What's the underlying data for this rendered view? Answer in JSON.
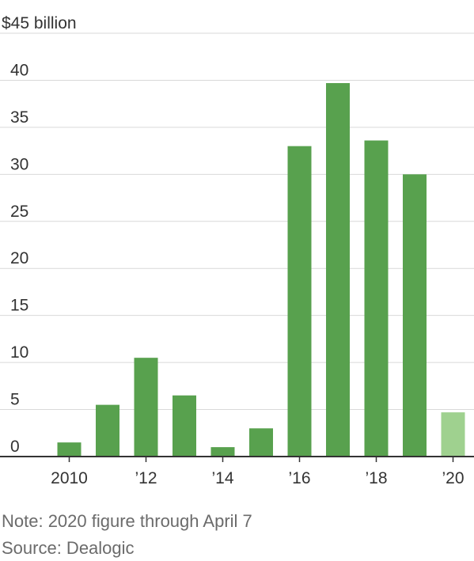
{
  "chart_data": {
    "type": "bar",
    "categories": [
      "2010",
      "2011",
      "2012",
      "2013",
      "2014",
      "2015",
      "2016",
      "2017",
      "2018",
      "2019",
      "2020"
    ],
    "x_tick_labels": [
      "2010",
      "",
      "’12",
      "",
      "’14",
      "",
      "’16",
      "",
      "’18",
      "",
      "’20"
    ],
    "values": [
      1.5,
      5.5,
      10.5,
      6.5,
      1.0,
      3.0,
      33.0,
      39.7,
      33.6,
      30.0,
      4.7
    ],
    "unit": "$ billion",
    "y_tick_labels": [
      "0",
      "5",
      "10",
      "15",
      "20",
      "25",
      "30",
      "35",
      "40",
      "$45 billion"
    ],
    "ylim": [
      0,
      45
    ],
    "grid": true,
    "colors": {
      "bar": "#58a14e",
      "bar_partial": "#9fd18f",
      "gridline": "#d9d9d9",
      "baseline": "#333333"
    },
    "title": "",
    "xlabel": "",
    "ylabel": ""
  },
  "footer": {
    "note": "Note: 2020 figure through April 7",
    "source": "Source: Dealogic"
  }
}
